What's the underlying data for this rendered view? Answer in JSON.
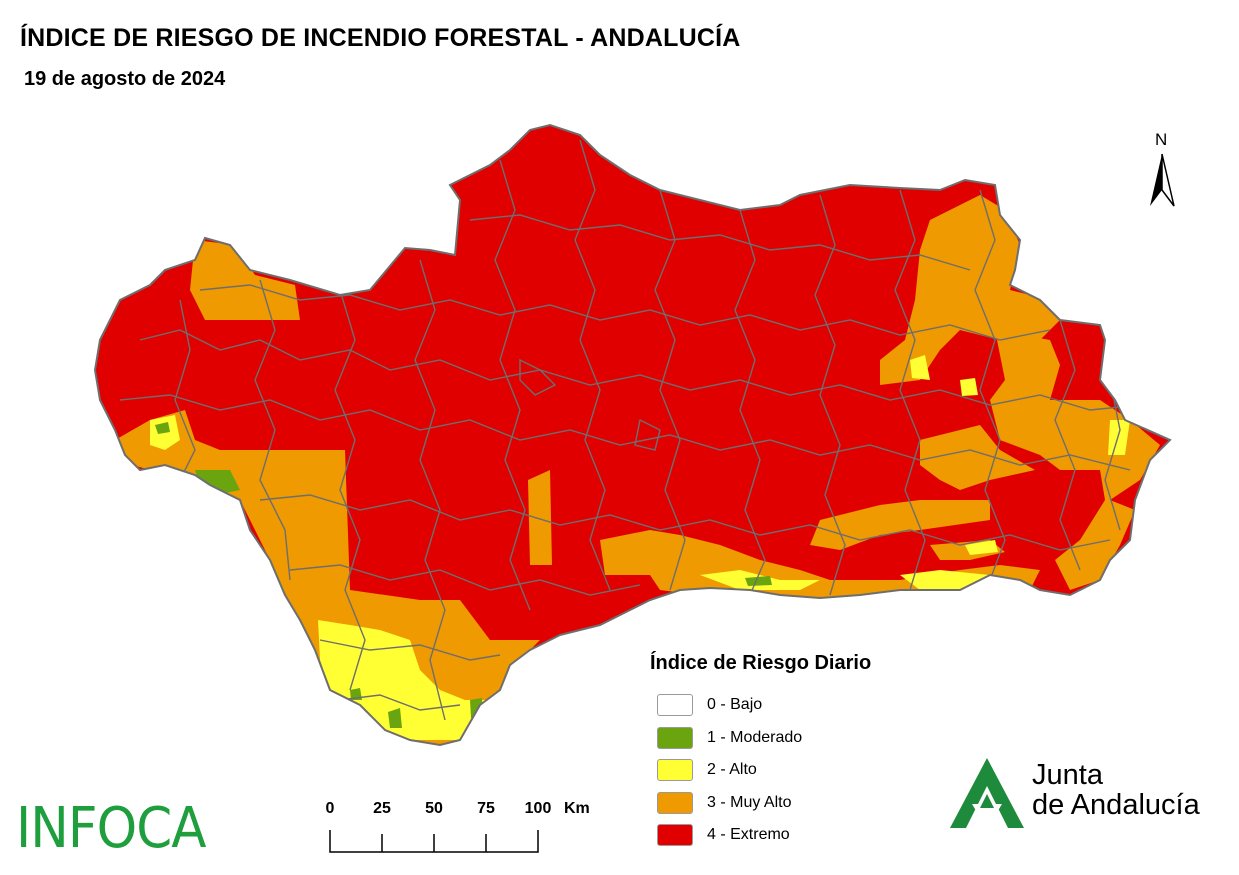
{
  "title": "ÍNDICE DE RIESGO DE INCENDIO FORESTAL - ANDALUCÍA",
  "date": "19 de agosto de 2024",
  "north_label": "N",
  "legend": {
    "title": "Índice de Riesgo Diario",
    "items": [
      {
        "label": "0 - Bajo",
        "color": "#ffffff"
      },
      {
        "label": "1 - Moderado",
        "color": "#6aa40f"
      },
      {
        "label": "2 - Alto",
        "color": "#ffff33"
      },
      {
        "label": "3 - Muy Alto",
        "color": "#ee9a00"
      },
      {
        "label": "4 - Extremo",
        "color": "#e00000"
      }
    ]
  },
  "scale_bar": {
    "ticks": [
      "0",
      "25",
      "50",
      "75",
      "100"
    ],
    "unit": "Km"
  },
  "logos": {
    "infoca": "INFOCA",
    "junta_line1": "Junta",
    "junta_line2": "de Andalucía"
  },
  "colors": {
    "extreme": "#e00000",
    "very_high": "#ee9a00",
    "high": "#ffff33",
    "moderate": "#6aa40f",
    "boundaries": "#6e6e6e",
    "infoca_green": "#1e9e3c",
    "junta_green": "#1e8a3c"
  }
}
